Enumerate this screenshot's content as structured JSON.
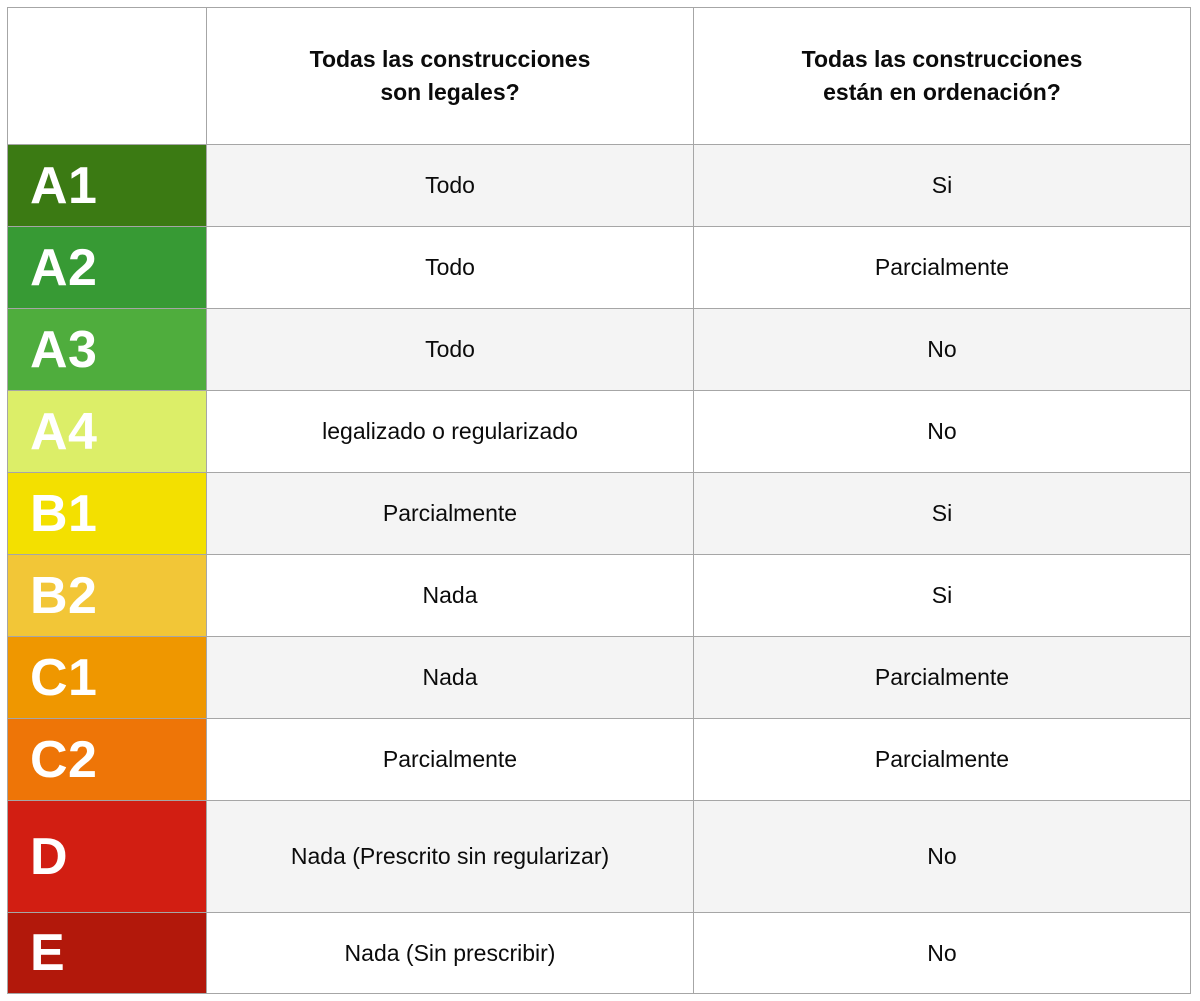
{
  "table": {
    "headers": {
      "grade_column": "",
      "legales": "Todas las construcciones\nson legales?",
      "ordenacion": "Todas las construcciones\nestán en ordenación?"
    },
    "rows": [
      {
        "grade": "A1",
        "color": "#3b7a13",
        "legales": "Todo",
        "ordenacion": "Si"
      },
      {
        "grade": "A2",
        "color": "#379a34",
        "legales": "Todo",
        "ordenacion": "Parcialmente"
      },
      {
        "grade": "A3",
        "color": "#4fad3d",
        "legales": "Todo",
        "ordenacion": "No"
      },
      {
        "grade": "A4",
        "color": "#dcee68",
        "legales": "legalizado o regularizado",
        "ordenacion": "No"
      },
      {
        "grade": "B1",
        "color": "#f3e000",
        "legales": "Parcialmente",
        "ordenacion": "Si"
      },
      {
        "grade": "B2",
        "color": "#f2c637",
        "legales": "Nada",
        "ordenacion": "Si"
      },
      {
        "grade": "C1",
        "color": "#ef9700",
        "legales": "Nada",
        "ordenacion": "Parcialmente"
      },
      {
        "grade": "C2",
        "color": "#ee7507",
        "legales": "Parcialmente",
        "ordenacion": "Parcialmente"
      },
      {
        "grade": "D",
        "color": "#d21e12",
        "legales": "Nada (Prescrito sin regularizar)",
        "ordenacion": "No"
      },
      {
        "grade": "E",
        "color": "#b2180b",
        "legales": "Nada (Sin prescribir)",
        "ordenacion": "No"
      }
    ],
    "style": {
      "row_alt_background": "#f4f4f4",
      "row_background": "#ffffff",
      "grid_color": "#a6a6a6",
      "text_color": "#0b0b0b",
      "grade_text_color": "#ffffff"
    }
  }
}
